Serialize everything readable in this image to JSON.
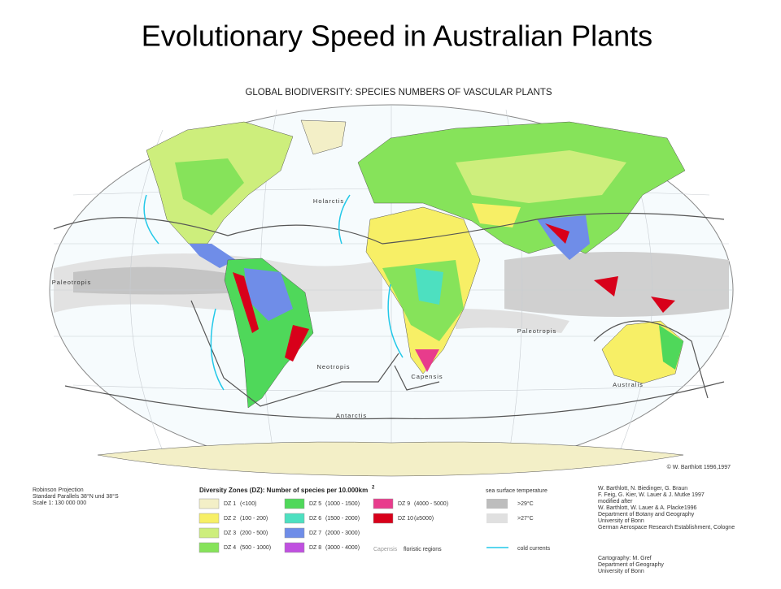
{
  "title": "Evolutionary Speed in Australian Plants",
  "map": {
    "heading": "GLOBAL BIODIVERSITY:  SPECIES NUMBERS OF VASCULAR PLANTS",
    "regions": [
      "Holarctis",
      "Paleotropis",
      "Neotropis",
      "Capensis",
      "Paleotropis",
      "Australis",
      "Antarctis"
    ],
    "copyright": "© W. Barthlott 1996,1997"
  },
  "legend": {
    "projection": [
      "Robinson Projection",
      "Standard Parallels 38°N und 38°S",
      "Scale 1: 130 000 000"
    ],
    "zones_title": "Diversity Zones (DZ): Number of species per 10.000km",
    "zones_title_sup": "2",
    "zones": [
      {
        "label": "DZ  1",
        "range": "(<100)",
        "color": "#f3efc7"
      },
      {
        "label": "DZ  2",
        "range": "(100 -  200)",
        "color": "#f7ef66"
      },
      {
        "label": "DZ  3",
        "range": "(200 -  500)",
        "color": "#cdee7c"
      },
      {
        "label": "DZ  4",
        "range": "(500 - 1000)",
        "color": "#86e35a"
      },
      {
        "label": "DZ  5",
        "range": "(1000 - 1500)",
        "color": "#4fd85a"
      },
      {
        "label": "DZ  6",
        "range": "(1500 - 2000)",
        "color": "#4de0c0"
      },
      {
        "label": "DZ  7",
        "range": "(2000 - 3000)",
        "color": "#6f8de8"
      },
      {
        "label": "DZ  8",
        "range": "(3000 - 4000)",
        "color": "#c050e0"
      },
      {
        "label": "DZ  9",
        "range": "(4000 - 5000)",
        "color": "#e83c8c"
      },
      {
        "label": "DZ 10",
        "range": "(≥5000)",
        "color": "#d8001a"
      }
    ],
    "floristic": {
      "label": "Capensis",
      "text": "floristic regions"
    },
    "sst_title": "sea surface temperature",
    "sst": [
      {
        "label": ">29°C",
        "color": "#bdbdbd"
      },
      {
        "label": ">27°C",
        "color": "#e0e0e0"
      }
    ],
    "cold_currents": "cold currents",
    "credits": [
      "W. Barthlott, N. Biedinger, G. Braun",
      "F. Feig, G. Kier, W. Lauer & J. Mutke 1997",
      "modified after",
      "W. Barthlott, W. Lauer & A. Placke1996",
      "Department of Botany and Geography",
      "University of Bonn",
      "German Aerospace Research Establishment, Cologne"
    ],
    "cartography": [
      "Cartography: M. Gref",
      "Department of Geography",
      "University of Bonn"
    ]
  }
}
